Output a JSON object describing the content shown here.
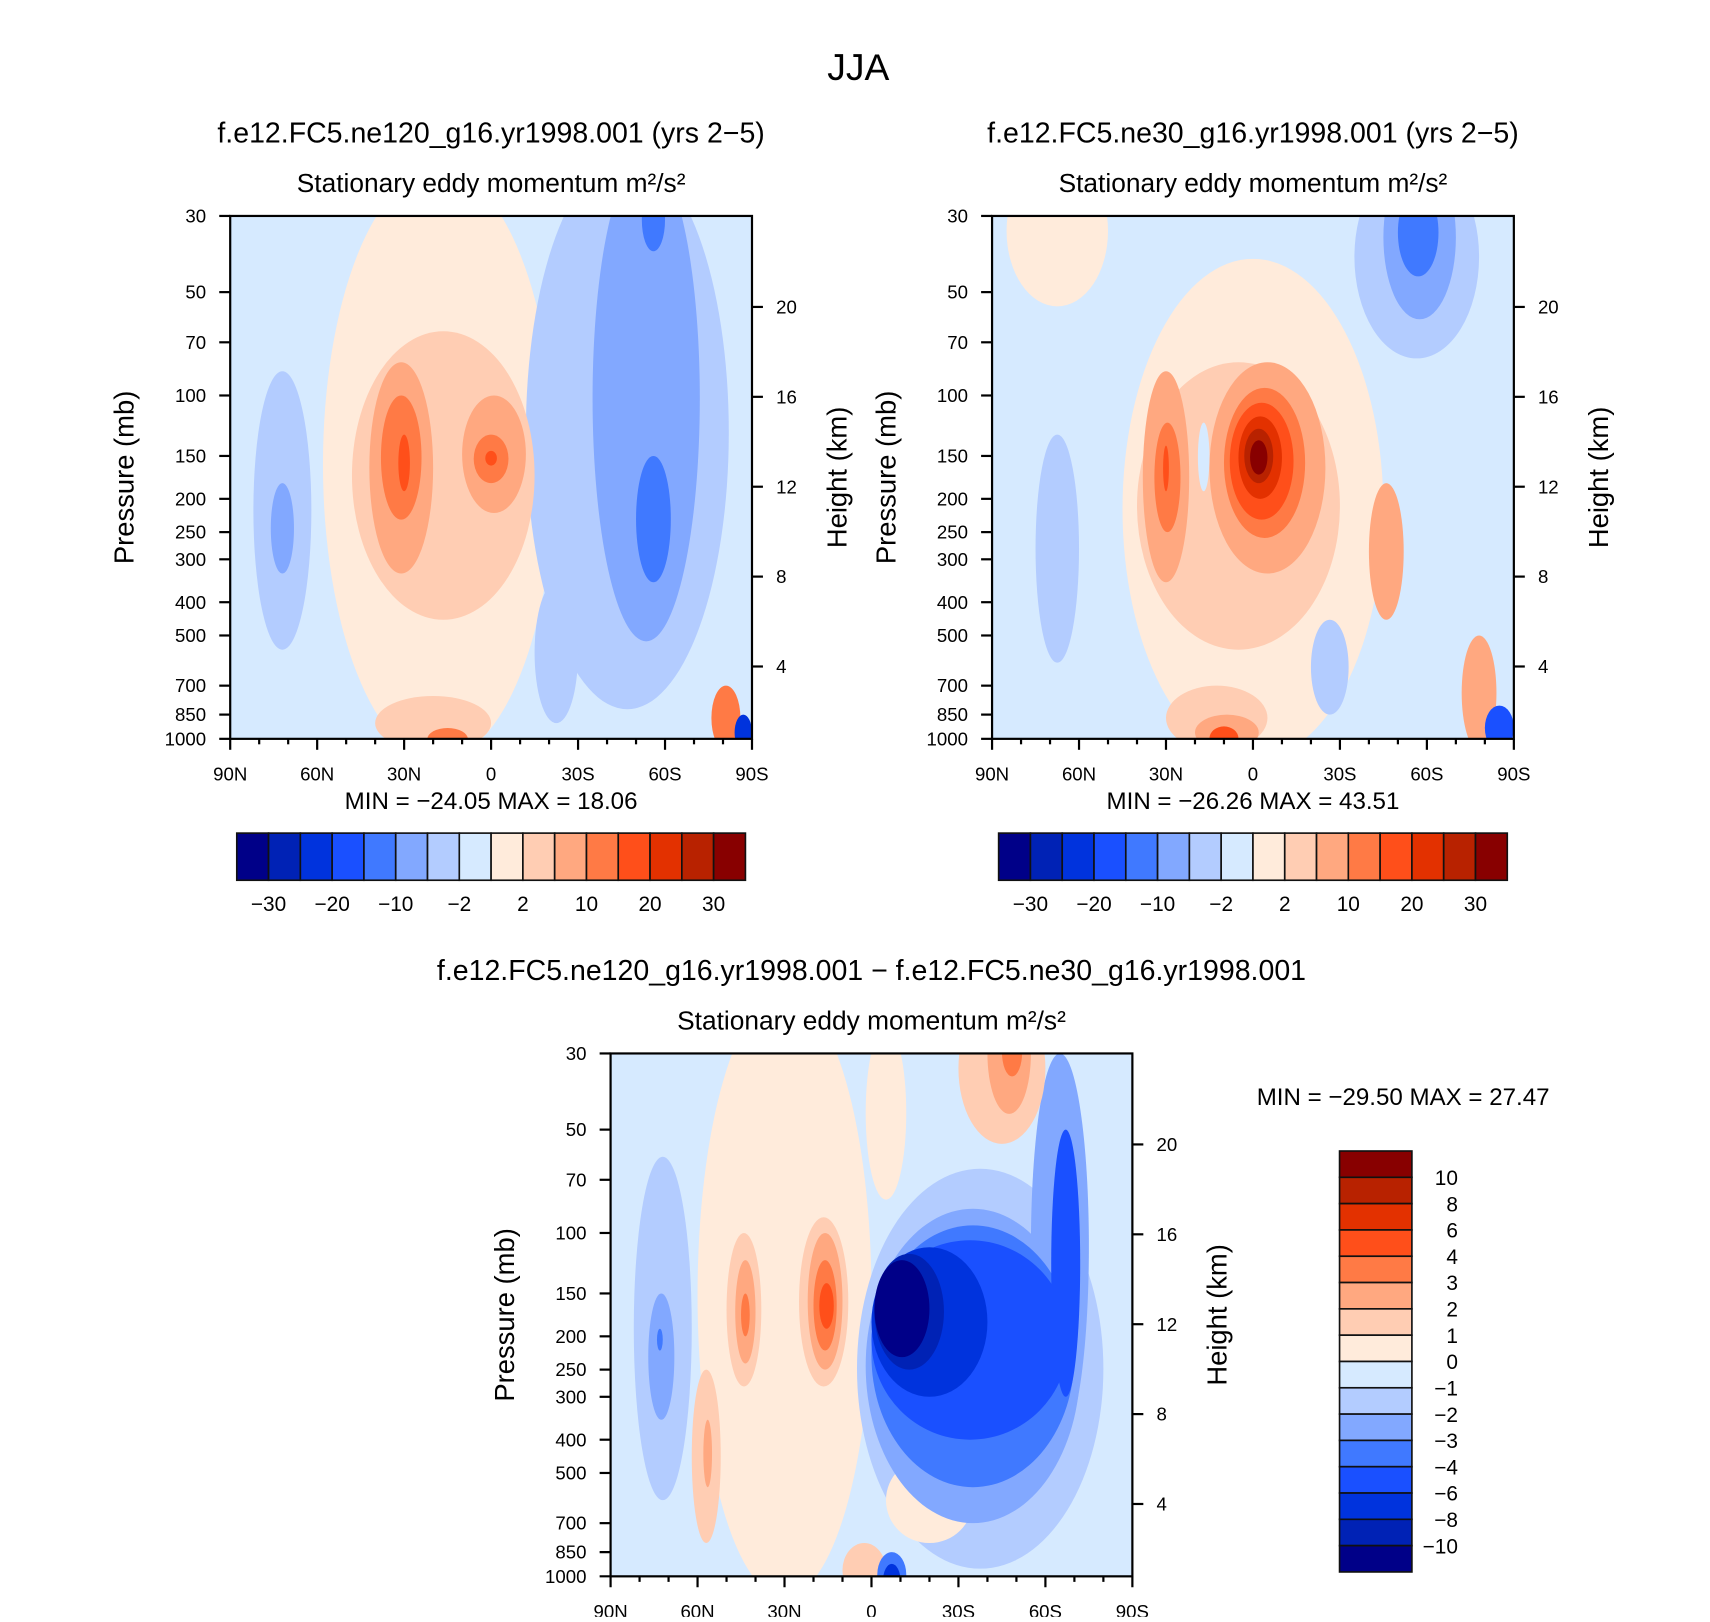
{
  "figure": {
    "title": "JJA"
  },
  "chart_data": [
    {
      "type": "contour",
      "title": "f.e12.FC5.ne120_g16.yr1998.001 (yrs 2−5)",
      "subtitle": "Stationary eddy momentum  m²/s²",
      "ylabel": "Pressure (mb)",
      "ylabel_right": "Height (km)",
      "x_ticks": [
        "90N",
        "60N",
        "30N",
        "0",
        "30S",
        "60S",
        "90S"
      ],
      "x_tick_values": [
        90,
        60,
        30,
        0,
        -30,
        -60,
        -90
      ],
      "y_ticks": [
        "30",
        "50",
        "70",
        "100",
        "150",
        "200",
        "250",
        "300",
        "400",
        "500",
        "700",
        "850",
        "1000"
      ],
      "y_tick_values": [
        30,
        50,
        70,
        100,
        150,
        200,
        250,
        300,
        400,
        500,
        700,
        850,
        1000
      ],
      "y_right_ticks": [
        "4",
        "8",
        "12",
        "16",
        "20"
      ],
      "y_right_tick_values": [
        4,
        8,
        12,
        16,
        20
      ],
      "xlim": [
        90,
        -90
      ],
      "ylim_mb": [
        1000,
        30
      ],
      "min_max": "MIN = −24.05   MAX =   18.06",
      "colorbar": {
        "orientation": "horizontal",
        "labels": [
          "−30",
          "−20",
          "−10",
          "−2",
          "2",
          "10",
          "20",
          "30"
        ],
        "levels": [
          -30,
          -25,
          -20,
          -15,
          -10,
          -5,
          -2,
          0,
          2,
          5,
          10,
          15,
          20,
          25,
          30
        ]
      },
      "base_level_index": 7,
      "features": [
        {
          "lat": [
            58,
            -22
          ],
          "p": [
            22,
            1150
          ],
          "c": 8
        },
        {
          "lat": [
            -12,
            -82
          ],
          "p": [
            20,
            820
          ],
          "c": 6
        },
        {
          "lat": [
            -35,
            -72
          ],
          "p": [
            20,
            520
          ],
          "c": 5
        },
        {
          "lat": [
            -52,
            -60
          ],
          "p": [
            25,
            38
          ],
          "c": 4
        },
        {
          "lat": [
            -50,
            -62
          ],
          "p": [
            150,
            350
          ],
          "c": 4
        },
        {
          "lat": [
            -15,
            -30
          ],
          "p": [
            350,
            900
          ],
          "c": 6
        },
        {
          "lat": [
            82,
            62
          ],
          "p": [
            85,
            550
          ],
          "c": 6
        },
        {
          "lat": [
            76,
            68
          ],
          "p": [
            180,
            330
          ],
          "c": 5
        },
        {
          "lat": [
            48,
            -15
          ],
          "p": [
            65,
            450
          ],
          "c": 9
        },
        {
          "lat": [
            42,
            20
          ],
          "p": [
            80,
            330
          ],
          "c": 10
        },
        {
          "lat": [
            10,
            -12
          ],
          "p": [
            100,
            220
          ],
          "c": 10
        },
        {
          "lat": [
            38,
            24
          ],
          "p": [
            100,
            230
          ],
          "c": 11
        },
        {
          "lat": [
            6,
            -6
          ],
          "p": [
            130,
            180
          ],
          "c": 11
        },
        {
          "lat": [
            32,
            28
          ],
          "p": [
            130,
            190
          ],
          "c": 12
        },
        {
          "lat": [
            2,
            -2
          ],
          "p": [
            145,
            160
          ],
          "c": 12
        },
        {
          "lat": [
            40,
            0
          ],
          "p": [
            750,
            1080
          ],
          "c": 9
        },
        {
          "lat": [
            22,
            8
          ],
          "p": [
            930,
            1080
          ],
          "c": 11
        },
        {
          "lat": [
            -76,
            -86
          ],
          "p": [
            700,
            1080
          ],
          "c": 11
        },
        {
          "lat": [
            -84,
            -90
          ],
          "p": [
            850,
            1080
          ],
          "c": 2
        }
      ]
    },
    {
      "type": "contour",
      "title": "f.e12.FC5.ne30_g16.yr1998.001 (yrs 2−5)",
      "subtitle": "Stationary eddy momentum  m²/s²",
      "ylabel": "Pressure (mb)",
      "ylabel_right": "Height (km)",
      "x_ticks": [
        "90N",
        "60N",
        "30N",
        "0",
        "30S",
        "60S",
        "90S"
      ],
      "x_tick_values": [
        90,
        60,
        30,
        0,
        -30,
        -60,
        -90
      ],
      "y_ticks": [
        "30",
        "50",
        "70",
        "100",
        "150",
        "200",
        "250",
        "300",
        "400",
        "500",
        "700",
        "850",
        "1000"
      ],
      "y_tick_values": [
        30,
        50,
        70,
        100,
        150,
        200,
        250,
        300,
        400,
        500,
        700,
        850,
        1000
      ],
      "y_right_ticks": [
        "4",
        "8",
        "12",
        "16",
        "20"
      ],
      "y_right_tick_values": [
        4,
        8,
        12,
        16,
        20
      ],
      "xlim": [
        90,
        -90
      ],
      "ylim_mb": [
        1000,
        30
      ],
      "min_max": "MIN = −26.26   MAX =   43.51",
      "colorbar": {
        "orientation": "horizontal",
        "labels": [
          "−30",
          "−20",
          "−10",
          "−2",
          "2",
          "10",
          "20",
          "30"
        ],
        "levels": [
          -30,
          -25,
          -20,
          -15,
          -10,
          -5,
          -2,
          0,
          2,
          5,
          10,
          15,
          20,
          25,
          30
        ]
      },
      "base_level_index": 7,
      "features": [
        {
          "lat": [
            45,
            -45
          ],
          "p": [
            40,
            1150
          ],
          "c": 8
        },
        {
          "lat": [
            85,
            50
          ],
          "p": [
            20,
            55
          ],
          "c": 8
        },
        {
          "lat": [
            -35,
            -78
          ],
          "p": [
            20,
            78
          ],
          "c": 6
        },
        {
          "lat": [
            -45,
            -70
          ],
          "p": [
            20,
            60
          ],
          "c": 5
        },
        {
          "lat": [
            -50,
            -64
          ],
          "p": [
            25,
            45
          ],
          "c": 4
        },
        {
          "lat": [
            75,
            60
          ],
          "p": [
            130,
            600
          ],
          "c": 6
        },
        {
          "lat": [
            -20,
            -33
          ],
          "p": [
            450,
            850
          ],
          "c": 6
        },
        {
          "lat": [
            40,
            -30
          ],
          "p": [
            80,
            550
          ],
          "c": 9
        },
        {
          "lat": [
            38,
            22
          ],
          "p": [
            85,
            350
          ],
          "c": 10
        },
        {
          "lat": [
            34,
            25
          ],
          "p": [
            120,
            250
          ],
          "c": 11
        },
        {
          "lat": [
            31,
            29
          ],
          "p": [
            140,
            190
          ],
          "c": 12
        },
        {
          "lat": [
            19,
            15
          ],
          "p": [
            120,
            190
          ],
          "c": 7
        },
        {
          "lat": [
            15,
            -25
          ],
          "p": [
            80,
            330
          ],
          "c": 10
        },
        {
          "lat": [
            10,
            -18
          ],
          "p": [
            95,
            260
          ],
          "c": 11
        },
        {
          "lat": [
            8,
            -14
          ],
          "p": [
            105,
            230
          ],
          "c": 12
        },
        {
          "lat": [
            5,
            -10
          ],
          "p": [
            115,
            200
          ],
          "c": 13
        },
        {
          "lat": [
            3,
            -7
          ],
          "p": [
            125,
            180
          ],
          "c": 14
        },
        {
          "lat": [
            1,
            -5
          ],
          "p": [
            135,
            170
          ],
          "c": 15
        },
        {
          "lat": [
            -40,
            -52
          ],
          "p": [
            180,
            450
          ],
          "c": 10
        },
        {
          "lat": [
            30,
            -5
          ],
          "p": [
            700,
            1080
          ],
          "c": 9
        },
        {
          "lat": [
            20,
            -2
          ],
          "p": [
            850,
            1080
          ],
          "c": 10
        },
        {
          "lat": [
            15,
            5
          ],
          "p": [
            920,
            1080
          ],
          "c": 12
        },
        {
          "lat": [
            -72,
            -84
          ],
          "p": [
            500,
            1080
          ],
          "c": 10
        },
        {
          "lat": [
            -80,
            -90
          ],
          "p": [
            800,
            1080
          ],
          "c": 3
        }
      ]
    },
    {
      "type": "contour",
      "title": "f.e12.FC5.ne120_g16.yr1998.001 − f.e12.FC5.ne30_g16.yr1998.001",
      "subtitle": "Stationary eddy momentum  m²/s²",
      "ylabel": "Pressure (mb)",
      "ylabel_right": "Height (km)",
      "x_ticks": [
        "90N",
        "60N",
        "30N",
        "0",
        "30S",
        "60S",
        "90S"
      ],
      "x_tick_values": [
        90,
        60,
        30,
        0,
        -30,
        -60,
        -90
      ],
      "y_ticks": [
        "30",
        "50",
        "70",
        "100",
        "150",
        "200",
        "250",
        "300",
        "400",
        "500",
        "700",
        "850",
        "1000"
      ],
      "y_tick_values": [
        30,
        50,
        70,
        100,
        150,
        200,
        250,
        300,
        400,
        500,
        700,
        850,
        1000
      ],
      "y_right_ticks": [
        "4",
        "8",
        "12",
        "16",
        "20"
      ],
      "y_right_tick_values": [
        4,
        8,
        12,
        16,
        20
      ],
      "xlim": [
        90,
        -90
      ],
      "ylim_mb": [
        1000,
        30
      ],
      "min_max": "MIN = −29.50   MAX =   27.47",
      "colorbar": {
        "orientation": "vertical",
        "labels": [
          "10",
          "8",
          "6",
          "4",
          "3",
          "2",
          "1",
          "0",
          "−1",
          "−2",
          "−3",
          "−4",
          "−6",
          "−8",
          "−10"
        ],
        "levels": [
          10,
          8,
          6,
          4,
          3,
          2,
          1,
          0,
          -1,
          -2,
          -3,
          -4,
          -6,
          -8,
          -10
        ]
      },
      "base_level_index": 7,
      "features": [
        {
          "lat": [
            60,
            0
          ],
          "p": [
            20,
            1150
          ],
          "c": 8
        },
        {
          "lat": [
            2,
            -12
          ],
          "p": [
            25,
            80
          ],
          "c": 8
        },
        {
          "lat": [
            82,
            62
          ],
          "p": [
            60,
            600
          ],
          "c": 6
        },
        {
          "lat": [
            77,
            68
          ],
          "p": [
            150,
            350
          ],
          "c": 5
        },
        {
          "lat": [
            74,
            72
          ],
          "p": [
            190,
            220
          ],
          "c": 4
        },
        {
          "lat": [
            62,
            52
          ],
          "p": [
            250,
            800
          ],
          "c": 9
        },
        {
          "lat": [
            58,
            55
          ],
          "p": [
            350,
            550
          ],
          "c": 10
        },
        {
          "lat": [
            50,
            38
          ],
          "p": [
            100,
            280
          ],
          "c": 9
        },
        {
          "lat": [
            47,
            40
          ],
          "p": [
            120,
            240
          ],
          "c": 10
        },
        {
          "lat": [
            45,
            42
          ],
          "p": [
            150,
            200
          ],
          "c": 11
        },
        {
          "lat": [
            25,
            8
          ],
          "p": [
            90,
            280
          ],
          "c": 9
        },
        {
          "lat": [
            22,
            10
          ],
          "p": [
            100,
            250
          ],
          "c": 10
        },
        {
          "lat": [
            20,
            12
          ],
          "p": [
            120,
            220
          ],
          "c": 11
        },
        {
          "lat": [
            18,
            13
          ],
          "p": [
            140,
            190
          ],
          "c": 12
        },
        {
          "lat": [
            5,
            -80
          ],
          "p": [
            65,
            950
          ],
          "c": 6
        },
        {
          "lat": [
            -5,
            -35
          ],
          "p": [
            450,
            800
          ],
          "c": 8
        },
        {
          "lat": [
            2,
            -72
          ],
          "p": [
            85,
            700
          ],
          "c": 5
        },
        {
          "lat": [
            -55,
            -75
          ],
          "p": [
            30,
            400
          ],
          "c": 5
        },
        {
          "lat": [
            0,
            -70
          ],
          "p": [
            95,
            550
          ],
          "c": 4
        },
        {
          "lat": [
            0,
            -68
          ],
          "p": [
            105,
            400
          ],
          "c": 3
        },
        {
          "lat": [
            -62,
            -72
          ],
          "p": [
            50,
            300
          ],
          "c": 3
        },
        {
          "lat": [
            0,
            -40
          ],
          "p": [
            110,
            300
          ],
          "c": 2
        },
        {
          "lat": [
            -1,
            -25
          ],
          "p": [
            115,
            250
          ],
          "c": 1
        },
        {
          "lat": [
            -1,
            -20
          ],
          "p": [
            120,
            230
          ],
          "c": 0
        },
        {
          "lat": [
            -30,
            -60
          ],
          "p": [
            20,
            55
          ],
          "c": 9
        },
        {
          "lat": [
            -40,
            -55
          ],
          "p": [
            20,
            45
          ],
          "c": 10
        },
        {
          "lat": [
            -45,
            -52
          ],
          "p": [
            25,
            35
          ],
          "c": 11
        },
        {
          "lat": [
            10,
            -5
          ],
          "p": [
            800,
            1150
          ],
          "c": 9
        },
        {
          "lat": [
            -2,
            -12
          ],
          "p": [
            850,
            1150
          ],
          "c": 4
        },
        {
          "lat": [
            -4,
            -10
          ],
          "p": [
            920,
            1150
          ],
          "c": 2
        }
      ]
    }
  ],
  "colors": [
    "#000088",
    "#0022b5",
    "#0033dd",
    "#1a50ff",
    "#4079ff",
    "#82a8ff",
    "#b3ccff",
    "#d6eaff",
    "#ffebdb",
    "#ffcdb3",
    "#ffa880",
    "#ff7a45",
    "#ff4f1a",
    "#e33100",
    "#b82200",
    "#880000"
  ]
}
